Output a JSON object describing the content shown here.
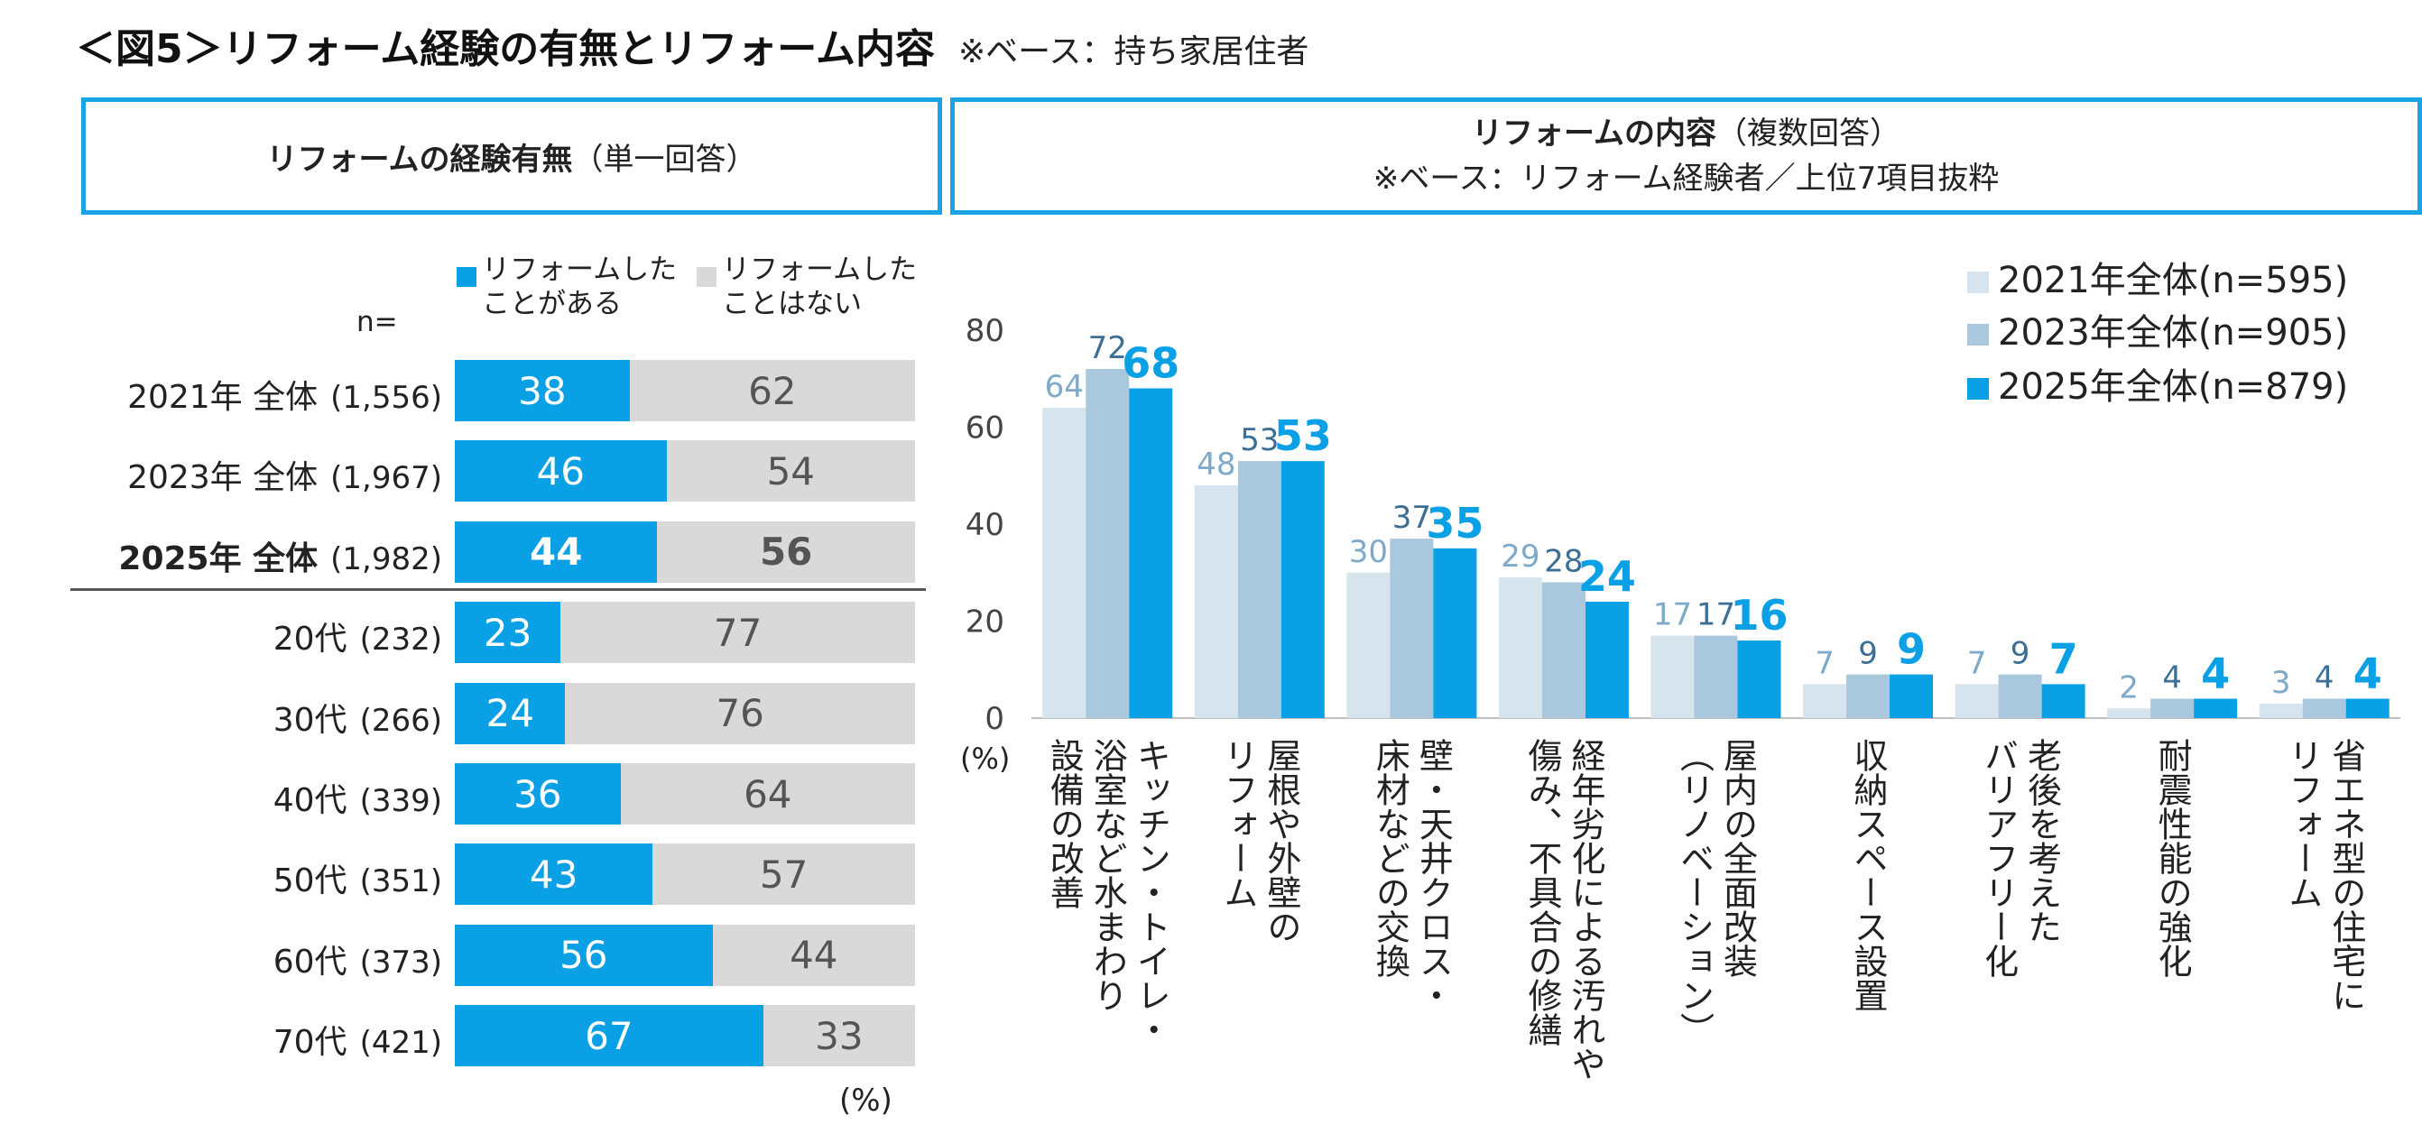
{
  "title": "＜図5＞リフォーム経験の有無とリフォーム内容",
  "title_base": "※ベース：持ち家居住者",
  "left_panel": {
    "header_bold": "リフォームの経験有無",
    "header_normal": "（単一回答）",
    "n_label": "n=",
    "legend_yes": [
      "リフォームした",
      "ことがある"
    ],
    "legend_no": [
      "リフォームした",
      "ことはない"
    ],
    "unit": "(%)",
    "rows": [
      {
        "label": "2021年 全体",
        "n": "(1,556)",
        "yes": 38,
        "no": 62,
        "bold": false
      },
      {
        "label": "2023年 全体",
        "n": "(1,967)",
        "yes": 46,
        "no": 54,
        "bold": false
      },
      {
        "label": "2025年 全体",
        "n": "(1,982)",
        "yes": 44,
        "no": 56,
        "bold": true
      },
      {
        "label": "20代",
        "n": "(232)",
        "yes": 23,
        "no": 77,
        "bold": false
      },
      {
        "label": "30代",
        "n": "(266)",
        "yes": 24,
        "no": 76,
        "bold": false
      },
      {
        "label": "40代",
        "n": "(339)",
        "yes": 36,
        "no": 64,
        "bold": false
      },
      {
        "label": "50代",
        "n": "(351)",
        "yes": 43,
        "no": 57,
        "bold": false
      },
      {
        "label": "60代",
        "n": "(373)",
        "yes": 56,
        "no": 44,
        "bold": false
      },
      {
        "label": "70代",
        "n": "(421)",
        "yes": 67,
        "no": 33,
        "bold": false
      }
    ]
  },
  "right_panel": {
    "header_bold": "リフォームの内容",
    "header_normal": "（複数回答）",
    "header_line2": "※ベース：リフォーム経験者／上位7項目抜粋",
    "unit": "(%)"
  },
  "colors": {
    "yes": "#0aa0e6",
    "no": "#d9d9d9",
    "s2021": "#d6e4ee",
    "s2023": "#a9c7dd",
    "s2025": "#0aa0e6",
    "label2021": "#7fa9c9",
    "label2023": "#3d6e93",
    "label2025": "#0aa0e6"
  },
  "chart_data": [
    {
      "type": "bar",
      "orientation": "horizontal-stacked",
      "title": "リフォームの経験有無（単一回答）",
      "categories": [
        "2021年 全体",
        "2023年 全体",
        "2025年 全体",
        "20代",
        "30代",
        "40代",
        "50代",
        "60代",
        "70代"
      ],
      "series": [
        {
          "name": "リフォームしたことがある",
          "values": [
            38,
            46,
            44,
            23,
            24,
            36,
            43,
            56,
            67
          ]
        },
        {
          "name": "リフォームしたことはない",
          "values": [
            62,
            54,
            56,
            77,
            76,
            64,
            57,
            44,
            33
          ]
        }
      ],
      "xlim": [
        0,
        100
      ],
      "unit": "(%)"
    },
    {
      "type": "bar",
      "orientation": "vertical-grouped",
      "title": "リフォームの内容（複数回答）",
      "categories": [
        [
          "キッチン・トイレ・",
          "浴室など水まわり",
          "設備の改善"
        ],
        [
          "屋根や外壁の",
          "リフォーム"
        ],
        [
          "壁・天井クロス・",
          "床材などの交換"
        ],
        [
          "経年劣化による汚れや",
          "傷み、不具合の修繕"
        ],
        [
          "屋内の全面改装",
          "（リノベーション）"
        ],
        [
          "収納スペース設置"
        ],
        [
          "老後を考えた",
          "バリアフリー化"
        ],
        [
          "耐震性能の強化"
        ],
        [
          "省エネ型の住宅に",
          "リフォーム"
        ]
      ],
      "series": [
        {
          "name": "2021年全体(n=595)",
          "values": [
            64,
            48,
            30,
            29,
            17,
            7,
            7,
            2,
            3
          ]
        },
        {
          "name": "2023年全体(n=905)",
          "values": [
            72,
            53,
            37,
            28,
            17,
            9,
            9,
            4,
            4
          ]
        },
        {
          "name": "2025年全体(n=879)",
          "values": [
            68,
            53,
            35,
            24,
            16,
            9,
            7,
            4,
            4
          ]
        }
      ],
      "ylim": [
        0,
        80
      ],
      "yticks": [
        0,
        20,
        40,
        60,
        80
      ],
      "ylabel": "(%)",
      "legend_position": "top-right"
    }
  ]
}
